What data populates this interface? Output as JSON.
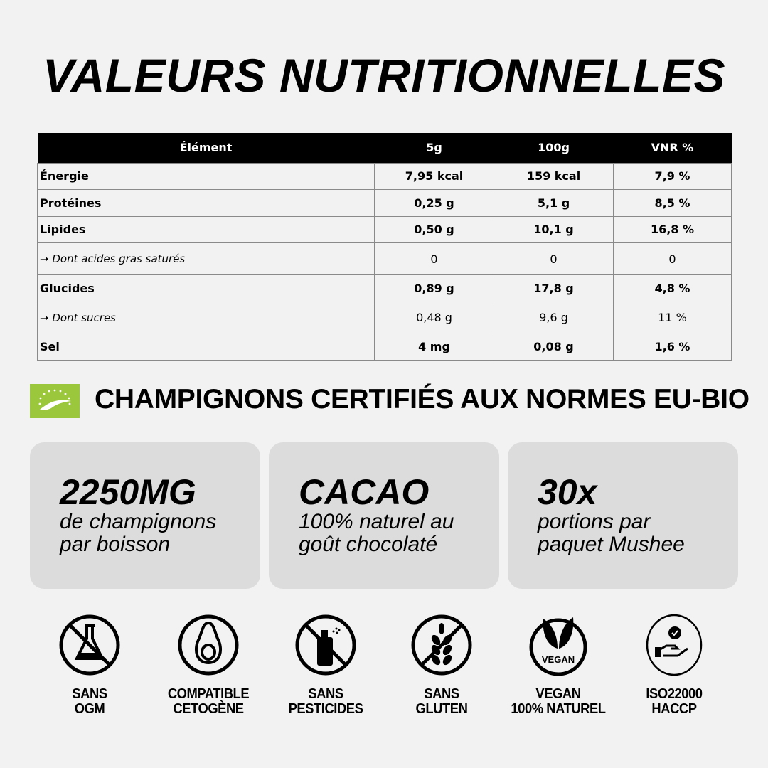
{
  "title": "VALEURS NUTRITIONNELLES",
  "table": {
    "headers": [
      "Élément",
      "5g",
      "100g",
      "VNR %"
    ],
    "rows": [
      {
        "label": "Énergie",
        "sub": false,
        "v5g": "7,95 kcal",
        "v100g": "159 kcal",
        "vnr": "7,9 %"
      },
      {
        "label": "Protéines",
        "sub": false,
        "v5g": "0,25 g",
        "v100g": "5,1 g",
        "vnr": "8,5 %"
      },
      {
        "label": "Lipides",
        "sub": false,
        "v5g": "0,50 g",
        "v100g": "10,1 g",
        "vnr": "16,8 %"
      },
      {
        "label": "➝ Dont acides gras saturés",
        "sub": true,
        "v5g": "0",
        "v100g": "0",
        "vnr": "0"
      },
      {
        "label": "Glucides",
        "sub": false,
        "v5g": "0,89 g",
        "v100g": "17,8 g",
        "vnr": "4,8 %"
      },
      {
        "label": "➝ Dont sucres",
        "sub": true,
        "v5g": "0,48 g",
        "v100g": "9,6 g",
        "vnr": "11 %"
      },
      {
        "label": "Sel",
        "sub": false,
        "v5g": "4 mg",
        "v100g": "0,08 g",
        "vnr": "1,6 %"
      }
    ]
  },
  "certification": {
    "text": "CHAMPIGNONS CERTIFIÉS AUX NORMES EU-BIO",
    "logo": "eu-organic-leaf-logo",
    "logo_color": "#9bc73c"
  },
  "cards": [
    {
      "big": "2250MG",
      "line1": "de champignons",
      "line2": "par boisson"
    },
    {
      "big": "CACAO",
      "line1": "100% naturel au",
      "line2": "goût chocolaté"
    },
    {
      "big": "30x",
      "line1": "portions par",
      "line2": "paquet Mushee"
    }
  ],
  "badges": [
    {
      "icon": "no-gmo-flask-icon",
      "line1": "SANS",
      "line2": "OGM"
    },
    {
      "icon": "avocado-icon",
      "line1": "COMPATIBLE",
      "line2": "CETOGÈNE"
    },
    {
      "icon": "no-pesticide-spray-icon",
      "line1": "SANS",
      "line2": "PESTICIDES"
    },
    {
      "icon": "no-gluten-wheat-icon",
      "line1": "SANS",
      "line2": "GLUTEN"
    },
    {
      "icon": "vegan-leaves-icon",
      "line1": "VEGAN",
      "line2": "100% NATUREL",
      "icon_text": "VEGAN"
    },
    {
      "icon": "hand-certified-icon",
      "line1": "ISO22000",
      "line2": "HACCP"
    }
  ]
}
